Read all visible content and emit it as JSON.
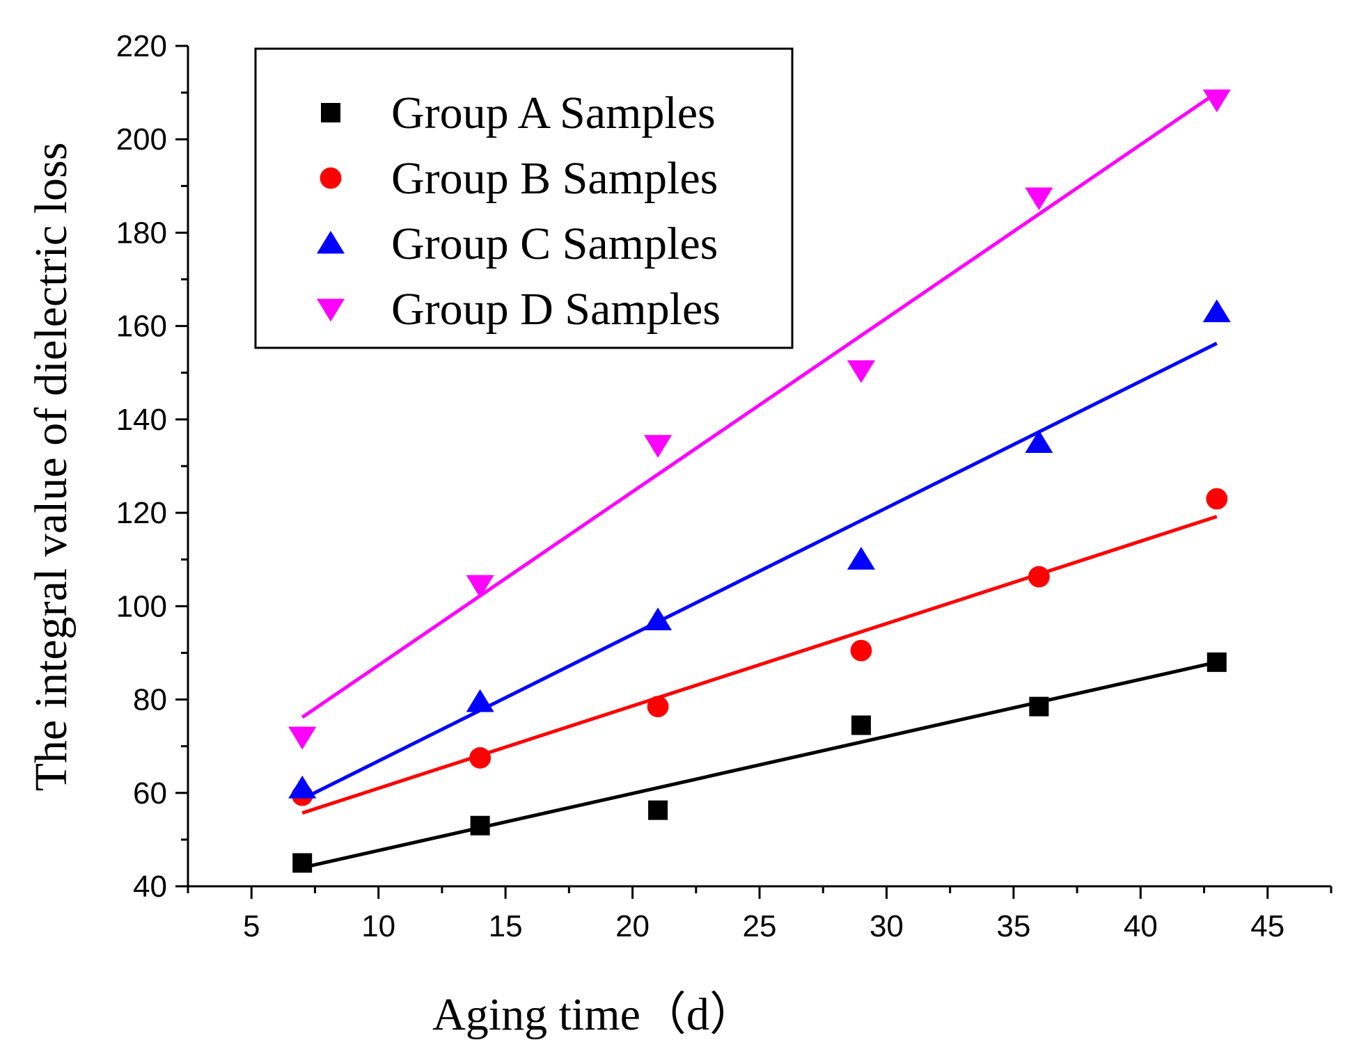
{
  "chart_data": {
    "type": "scatter",
    "xlabel": "Aging time（d）",
    "ylabel": "The integral value of dielectric loss",
    "xlim": [
      2.5,
      47.5
    ],
    "ylim": [
      40,
      220
    ],
    "xticks": [
      5,
      10,
      15,
      20,
      25,
      30,
      35,
      40,
      45
    ],
    "yticks": [
      40,
      60,
      80,
      100,
      120,
      140,
      160,
      180,
      200,
      220
    ],
    "legend_position": "top-left",
    "grid": false,
    "series": [
      {
        "name": "Group A Samples",
        "marker": "square",
        "color": "#000000",
        "x": [
          7,
          14,
          21,
          29,
          36,
          43
        ],
        "y": [
          45,
          53,
          56.3,
          74.5,
          78.5,
          88
        ],
        "fit": {
          "x": [
            7,
            43
          ],
          "y": [
            44,
            88
          ]
        }
      },
      {
        "name": "Group B Samples",
        "marker": "circle",
        "color": "#ff0000",
        "x": [
          7,
          14,
          21,
          29,
          36,
          43
        ],
        "y": [
          59.5,
          67.5,
          78.5,
          90.5,
          106.3,
          123
        ],
        "fit": {
          "x": [
            7,
            43
          ],
          "y": [
            55.7,
            119.2
          ]
        }
      },
      {
        "name": "Group C Samples",
        "marker": "triangle-up",
        "color": "#0000ff",
        "x": [
          7,
          14,
          21,
          29,
          36,
          43
        ],
        "y": [
          61,
          79.5,
          97,
          110,
          135,
          163
        ],
        "fit": {
          "x": [
            7,
            43
          ],
          "y": [
            58.7,
            156.3
          ]
        }
      },
      {
        "name": "Group D Samples",
        "marker": "triangle-down",
        "color": "#ff00ff",
        "x": [
          7,
          14,
          21,
          29,
          36,
          43
        ],
        "y": [
          72,
          104.5,
          134.5,
          150.5,
          187.5,
          208.5
        ],
        "fit": {
          "x": [
            7,
            43
          ],
          "y": [
            76.2,
            210
          ]
        }
      }
    ]
  }
}
